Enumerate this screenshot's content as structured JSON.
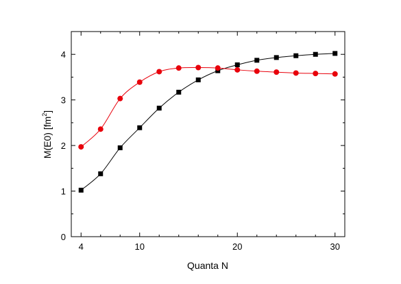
{
  "chart_data": {
    "type": "line",
    "xlabel": "Quanta N",
    "ylabel": "M(E0) [fm",
    "ylabel_superscript": "2",
    "ylabel_suffix": "]",
    "xlim": [
      3,
      31
    ],
    "ylim": [
      0,
      4.5
    ],
    "xticks": [
      4,
      10,
      20,
      30
    ],
    "xtick_labels": [
      "4",
      "10",
      "20",
      "30"
    ],
    "xminor": [
      6,
      8,
      12,
      14,
      16,
      18,
      22,
      24,
      26,
      28
    ],
    "yticks": [
      0,
      1,
      2,
      3,
      4
    ],
    "ytick_labels": [
      "0",
      "1",
      "2",
      "3",
      "4"
    ],
    "yminor": [
      0.5,
      1.5,
      2.5,
      3.5
    ],
    "grid": false,
    "x": [
      4,
      6,
      8,
      10,
      12,
      14,
      16,
      18,
      20,
      22,
      24,
      26,
      28,
      30
    ],
    "series": [
      {
        "color": "#000000",
        "marker": "square",
        "values": [
          1.02,
          1.38,
          1.95,
          2.39,
          2.82,
          3.17,
          3.44,
          3.64,
          3.77,
          3.87,
          3.93,
          3.97,
          4.0,
          4.02
        ]
      },
      {
        "color": "#e8000b",
        "marker": "circle",
        "values": [
          1.97,
          2.36,
          3.03,
          3.39,
          3.62,
          3.7,
          3.71,
          3.7,
          3.66,
          3.63,
          3.61,
          3.59,
          3.58,
          3.57
        ]
      }
    ]
  }
}
